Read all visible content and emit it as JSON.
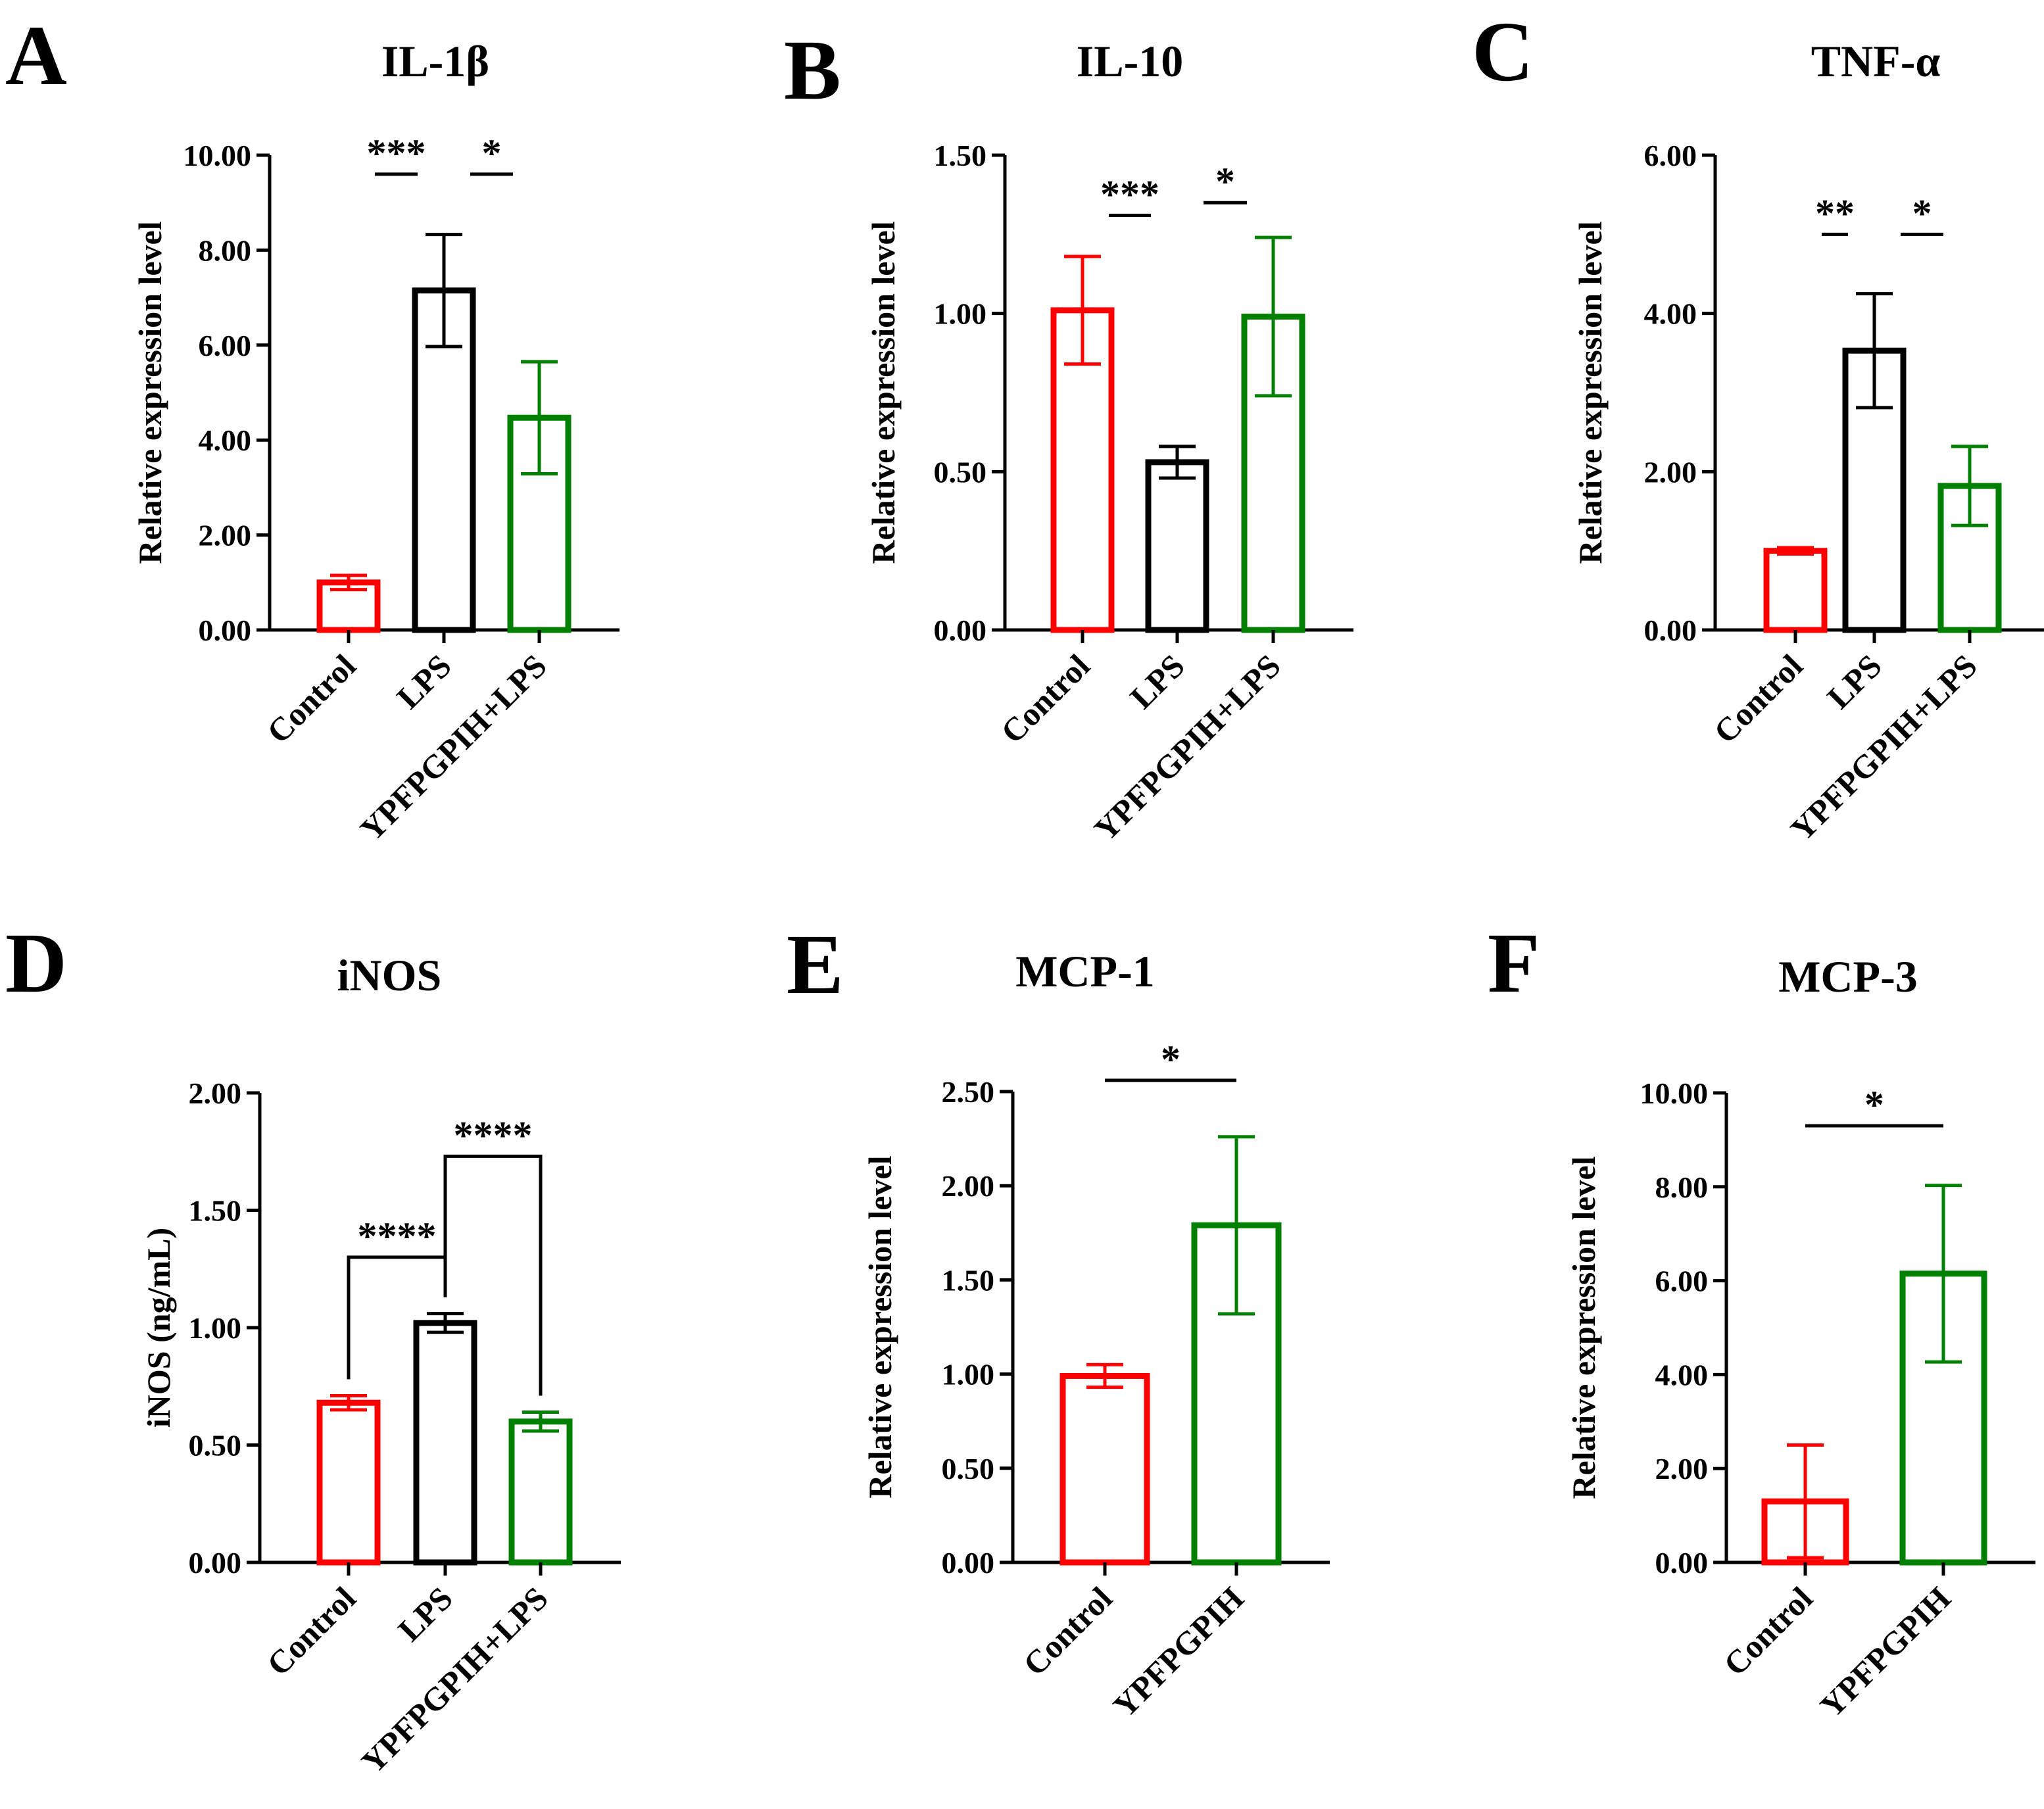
{
  "figure": {
    "colors": {
      "Control": "#ff0000",
      "LPS": "#000000",
      "YPFPGPIH+LPS": "#008000",
      "YPFPGPIH": "#008000"
    }
  },
  "chart_data": [
    {
      "panel": "A",
      "type": "bar",
      "title": "IL-1β",
      "ylabel": "Relative expression level",
      "xlabel": "",
      "ylim": [
        0,
        10
      ],
      "yticks": [
        "0.00",
        "2.00",
        "4.00",
        "6.00",
        "8.00",
        "10.00"
      ],
      "categories": [
        "Control",
        "LPS",
        "YPFPGPIH+LPS"
      ],
      "values": [
        1.0,
        7.15,
        4.47
      ],
      "errors": [
        0.15,
        1.18,
        1.18
      ],
      "significance": [
        {
          "from": 0,
          "to": 1,
          "label": "***",
          "y": 9.6,
          "style": "line"
        },
        {
          "from": 1,
          "to": 2,
          "label": "*",
          "y": 9.6,
          "style": "line"
        }
      ]
    },
    {
      "panel": "B",
      "type": "bar",
      "title": "IL-10",
      "ylabel": "Relative expression level",
      "xlabel": "",
      "ylim": [
        0,
        1.5
      ],
      "yticks": [
        "0.00",
        "0.50",
        "1.00",
        "1.50"
      ],
      "categories": [
        "Control",
        "LPS",
        "YPFPGPIH+LPS"
      ],
      "values": [
        1.01,
        0.53,
        0.99
      ],
      "errors": [
        0.17,
        0.05,
        0.25
      ],
      "significance": [
        {
          "from": 0,
          "to": 1,
          "label": "***",
          "y": 1.31,
          "style": "line"
        },
        {
          "from": 1,
          "to": 2,
          "label": "*",
          "y": 1.35,
          "style": "line"
        }
      ]
    },
    {
      "panel": "C",
      "type": "bar",
      "title": "TNF-α",
      "ylabel": "Relative expression level",
      "xlabel": "",
      "ylim": [
        0,
        6
      ],
      "yticks": [
        "0.00",
        "2.00",
        "4.00",
        "6.00"
      ],
      "categories": [
        "Control",
        "LPS",
        "YPFPGPIH+LPS"
      ],
      "values": [
        1.0,
        3.53,
        1.82
      ],
      "errors": [
        0.04,
        0.72,
        0.5
      ],
      "significance": [
        {
          "from": 0,
          "to": 1,
          "label": "**",
          "y": 5.0,
          "style": "line"
        },
        {
          "from": 1,
          "to": 2,
          "label": "*",
          "y": 5.0,
          "style": "line"
        }
      ]
    },
    {
      "panel": "D",
      "type": "bar",
      "title": "iNOS",
      "ylabel": "iNOS (ng/mL)",
      "xlabel": "",
      "ylim": [
        0,
        2
      ],
      "yticks": [
        "0.00",
        "0.50",
        "1.00",
        "1.50",
        "2.00"
      ],
      "categories": [
        "Control",
        "LPS",
        "YPFPGPIH+LPS"
      ],
      "values": [
        0.68,
        1.02,
        0.6
      ],
      "errors": [
        0.03,
        0.04,
        0.04
      ],
      "significance": [
        {
          "from": 0,
          "to": 1,
          "label": "****",
          "y": 1.3,
          "style": "bracket"
        },
        {
          "from": 1,
          "to": 2,
          "label": "****",
          "y": 1.73,
          "style": "bracket"
        }
      ]
    },
    {
      "panel": "E",
      "type": "bar",
      "title": "MCP-1",
      "ylabel": "Relative expression level",
      "xlabel": "",
      "ylim": [
        0,
        2.5
      ],
      "yticks": [
        "0.00",
        "0.50",
        "1.00",
        "1.50",
        "2.00",
        "2.50"
      ],
      "categories": [
        "Control",
        "YPFPGPIH"
      ],
      "values": [
        0.99,
        1.79
      ],
      "errors": [
        0.06,
        0.47
      ],
      "significance": [
        {
          "from": 0,
          "to": 1,
          "label": "*",
          "y": 2.56,
          "style": "line"
        }
      ]
    },
    {
      "panel": "F",
      "type": "bar",
      "title": "MCP-3",
      "ylabel": "Relative expression level",
      "xlabel": "",
      "ylim": [
        0,
        10
      ],
      "yticks": [
        "0.00",
        "2.00",
        "4.00",
        "6.00",
        "8.00",
        "10.00"
      ],
      "categories": [
        "Control",
        "YPFPGPIH"
      ],
      "values": [
        1.3,
        6.15
      ],
      "errors": [
        1.2,
        1.88
      ],
      "significance": [
        {
          "from": 0,
          "to": 1,
          "label": "*",
          "y": 9.3,
          "style": "line"
        }
      ]
    }
  ]
}
